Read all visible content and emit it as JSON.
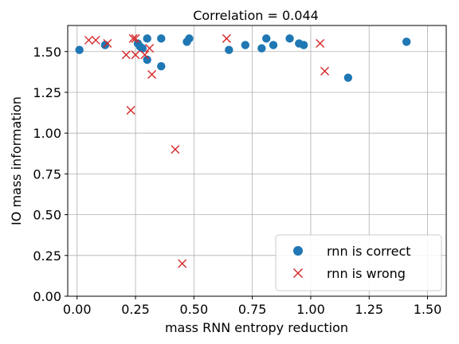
{
  "chart_data": {
    "type": "scatter",
    "title": "Correlation = 0.044",
    "xlabel": "mass RNN entropy reduction",
    "ylabel": "IO mass information",
    "xlim": [
      -0.04,
      1.58
    ],
    "ylim": [
      0.0,
      1.66
    ],
    "xticks": [
      0.0,
      0.25,
      0.5,
      0.75,
      1.0,
      1.25,
      1.5
    ],
    "xtick_labels": [
      "0.00",
      "0.25",
      "0.50",
      "0.75",
      "1.00",
      "1.25",
      "1.50"
    ],
    "yticks": [
      0.0,
      0.25,
      0.5,
      0.75,
      1.0,
      1.25,
      1.5
    ],
    "ytick_labels": [
      "0.00",
      "0.25",
      "0.50",
      "0.75",
      "1.00",
      "1.25",
      "1.50"
    ],
    "grid": true,
    "legend_position": "lower-right",
    "series": [
      {
        "name": "rnn is correct",
        "marker": "circle",
        "color": "#1f77b4",
        "points": [
          [
            0.01,
            1.51
          ],
          [
            0.12,
            1.54
          ],
          [
            0.26,
            1.55
          ],
          [
            0.27,
            1.53
          ],
          [
            0.28,
            1.52
          ],
          [
            0.3,
            1.45
          ],
          [
            0.3,
            1.58
          ],
          [
            0.36,
            1.41
          ],
          [
            0.36,
            1.58
          ],
          [
            0.47,
            1.56
          ],
          [
            0.48,
            1.58
          ],
          [
            0.65,
            1.51
          ],
          [
            0.72,
            1.54
          ],
          [
            0.79,
            1.52
          ],
          [
            0.81,
            1.58
          ],
          [
            0.84,
            1.54
          ],
          [
            0.91,
            1.58
          ],
          [
            0.95,
            1.55
          ],
          [
            0.97,
            1.54
          ],
          [
            1.16,
            1.34
          ],
          [
            1.41,
            1.56
          ]
        ]
      },
      {
        "name": "rnn is wrong",
        "marker": "x",
        "color": "#d62728",
        "points": [
          [
            0.05,
            1.57
          ],
          [
            0.08,
            1.57
          ],
          [
            0.13,
            1.55
          ],
          [
            0.21,
            1.48
          ],
          [
            0.24,
            1.58
          ],
          [
            0.25,
            1.58
          ],
          [
            0.25,
            1.48
          ],
          [
            0.29,
            1.48
          ],
          [
            0.31,
            1.52
          ],
          [
            0.32,
            1.36
          ],
          [
            0.23,
            1.14
          ],
          [
            0.42,
            0.9
          ],
          [
            0.45,
            0.2
          ],
          [
            0.64,
            1.58
          ],
          [
            1.04,
            1.55
          ],
          [
            1.06,
            1.38
          ]
        ]
      }
    ]
  }
}
